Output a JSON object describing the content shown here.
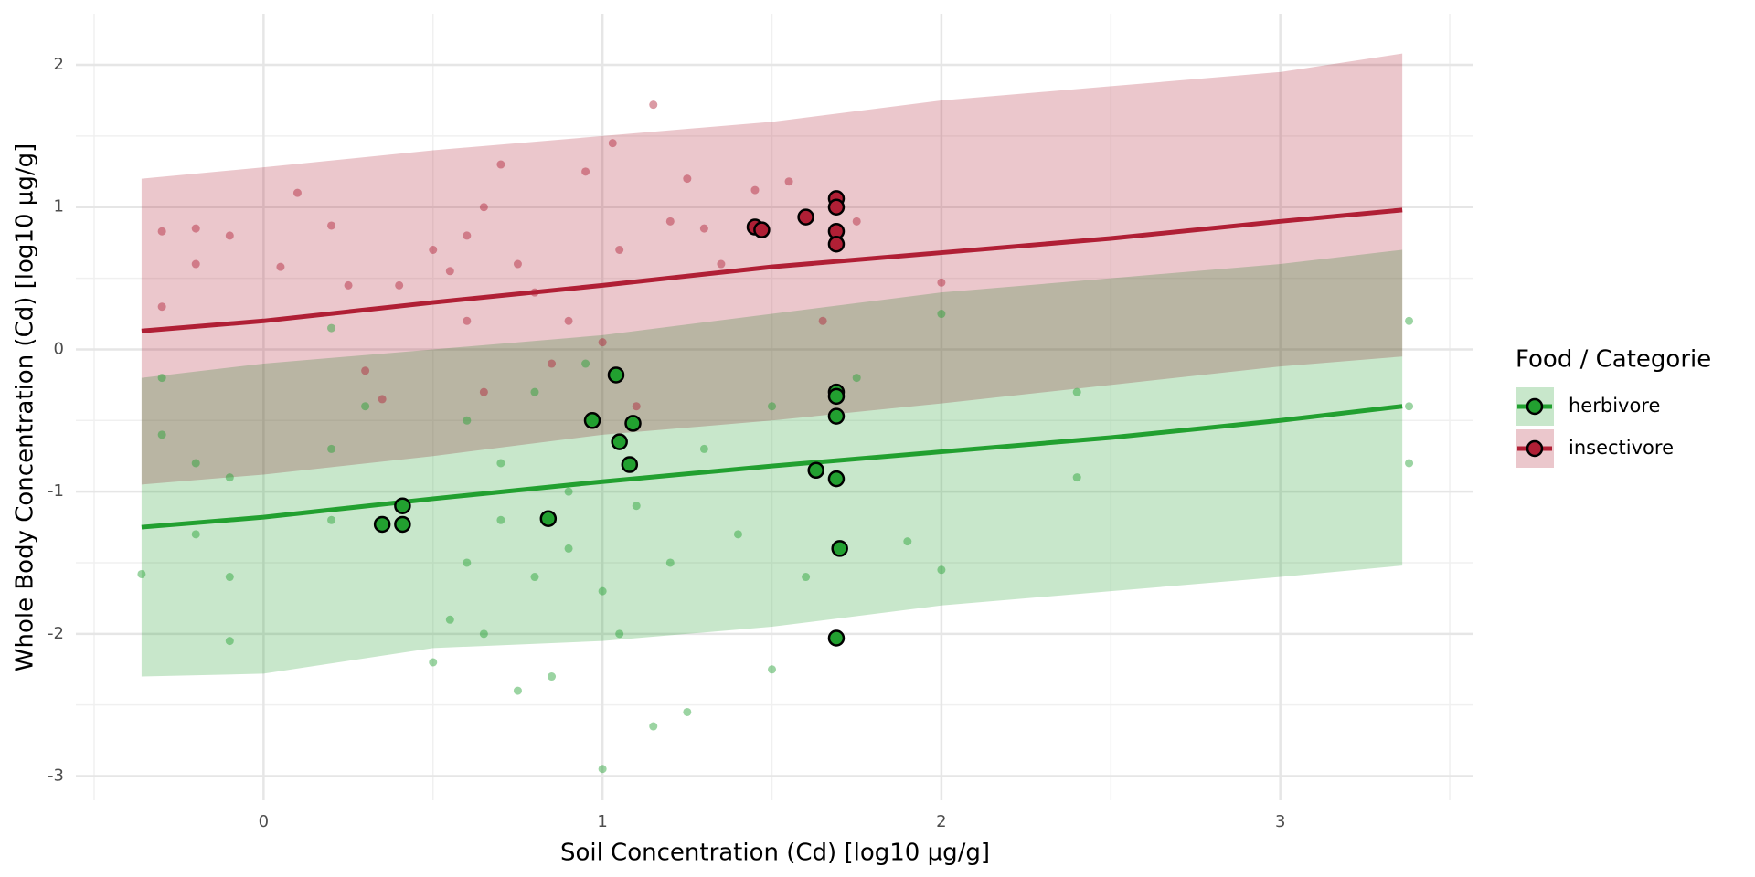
{
  "chart_data": {
    "type": "scatter",
    "x_label": "Soil Concentration (Cd) [log10 µg/g]",
    "y_label": "Whole Body Concentration (Cd) [log10 µg/g]",
    "legend_title": "Food / Categorie",
    "legend": "right",
    "grid": true,
    "xlim": [
      -0.5,
      3.57
    ],
    "ylim": [
      -3.17,
      2.36
    ],
    "xticks": [
      0,
      1,
      2,
      3
    ],
    "yticks": [
      -3,
      -2,
      -1,
      0,
      1,
      2
    ],
    "xminor_ticks": [
      -0.5,
      0.5,
      1.5,
      2.5,
      3.5
    ],
    "yminor_ticks": [
      -2.5,
      -1.5,
      -0.5,
      0.5,
      1.5
    ],
    "series": [
      {
        "name": "herbivore",
        "color": "#22a030",
        "fit": {
          "x": [
            -0.36,
            0,
            0.5,
            1,
            1.5,
            2,
            2.5,
            3,
            3.36
          ],
          "values": [
            -1.25,
            -1.18,
            -1.05,
            -0.93,
            -0.82,
            -0.72,
            -0.62,
            -0.5,
            -0.4
          ],
          "lower": [
            -2.3,
            -2.28,
            -2.1,
            -2.05,
            -1.95,
            -1.8,
            -1.7,
            -1.6,
            -1.52
          ],
          "upper": [
            -0.2,
            -0.1,
            0.0,
            0.1,
            0.25,
            0.4,
            0.5,
            0.6,
            0.7
          ]
        },
        "points": {
          "x": [
            -0.36,
            -0.3,
            -0.3,
            -0.2,
            -0.2,
            -0.1,
            -0.1,
            -0.1,
            0.2,
            0.2,
            0.2,
            0.3,
            0.5,
            0.55,
            0.6,
            0.6,
            0.65,
            0.7,
            0.7,
            0.75,
            0.8,
            0.8,
            0.85,
            0.9,
            0.9,
            0.95,
            1.0,
            1.0,
            1.05,
            1.1,
            1.15,
            1.2,
            1.25,
            1.3,
            1.4,
            1.5,
            1.5,
            1.6,
            1.75,
            1.9,
            2.0,
            2.0,
            2.4,
            2.4,
            3.38,
            3.38,
            3.38
          ],
          "values": [
            -1.58,
            -0.2,
            -0.6,
            -0.8,
            -1.3,
            -0.9,
            -1.6,
            -2.05,
            -0.7,
            -1.2,
            0.15,
            -0.4,
            -2.2,
            -1.9,
            -1.5,
            -0.5,
            -2.0,
            -1.2,
            -0.8,
            -2.4,
            -1.6,
            -0.3,
            -2.3,
            -1.0,
            -1.4,
            -0.1,
            -2.95,
            -1.7,
            -2.0,
            -1.1,
            -2.65,
            -1.5,
            -2.55,
            -0.7,
            -1.3,
            -0.4,
            -2.25,
            -1.6,
            -0.2,
            -1.35,
            -1.55,
            0.25,
            -0.9,
            -0.3,
            0.2,
            -0.8,
            -0.4
          ]
        },
        "highlight": {
          "x": [
            1.04,
            0.97,
            1.09,
            1.05,
            1.08,
            0.35,
            0.41,
            0.41,
            0.84,
            1.63,
            1.69,
            1.69,
            1.69,
            1.69,
            1.7,
            1.69
          ],
          "values": [
            -0.18,
            -0.5,
            -0.52,
            -0.65,
            -0.81,
            -1.23,
            -1.1,
            -1.23,
            -1.19,
            -0.85,
            -0.3,
            -0.33,
            -0.47,
            -0.91,
            -1.4,
            -2.03
          ]
        }
      },
      {
        "name": "insectivore",
        "color": "#b01f35",
        "fit": {
          "x": [
            -0.36,
            0,
            0.5,
            1,
            1.5,
            2,
            2.5,
            3,
            3.36
          ],
          "values": [
            0.13,
            0.2,
            0.33,
            0.45,
            0.58,
            0.68,
            0.78,
            0.9,
            0.98
          ],
          "lower": [
            -0.95,
            -0.88,
            -0.75,
            -0.6,
            -0.5,
            -0.38,
            -0.25,
            -0.12,
            -0.05
          ],
          "upper": [
            1.2,
            1.28,
            1.4,
            1.5,
            1.6,
            1.75,
            1.85,
            1.95,
            2.08
          ]
        },
        "points": {
          "x": [
            -0.3,
            -0.3,
            -0.2,
            -0.2,
            -0.1,
            0.05,
            0.1,
            0.2,
            0.25,
            0.3,
            0.35,
            0.4,
            0.5,
            0.55,
            0.6,
            0.6,
            0.65,
            0.65,
            0.7,
            0.75,
            0.8,
            0.85,
            0.9,
            0.95,
            1.0,
            1.03,
            1.05,
            1.15,
            1.2,
            1.25,
            1.3,
            1.35,
            1.45,
            1.55,
            1.65,
            1.75,
            2.0,
            1.1
          ],
          "values": [
            0.83,
            0.3,
            0.85,
            0.6,
            0.8,
            0.58,
            1.1,
            0.87,
            0.45,
            -0.15,
            -0.35,
            0.45,
            0.7,
            0.55,
            0.8,
            0.2,
            1.0,
            -0.3,
            1.3,
            0.6,
            0.4,
            -0.1,
            0.2,
            1.25,
            0.05,
            1.45,
            0.7,
            1.72,
            0.9,
            1.2,
            0.85,
            0.6,
            1.12,
            1.18,
            0.2,
            0.9,
            0.47,
            -0.4
          ]
        },
        "highlight": {
          "x": [
            1.45,
            1.47,
            1.6,
            1.69,
            1.69,
            1.69,
            1.69
          ],
          "values": [
            0.86,
            0.84,
            0.93,
            1.06,
            1.0,
            0.83,
            0.74
          ]
        }
      }
    ]
  }
}
